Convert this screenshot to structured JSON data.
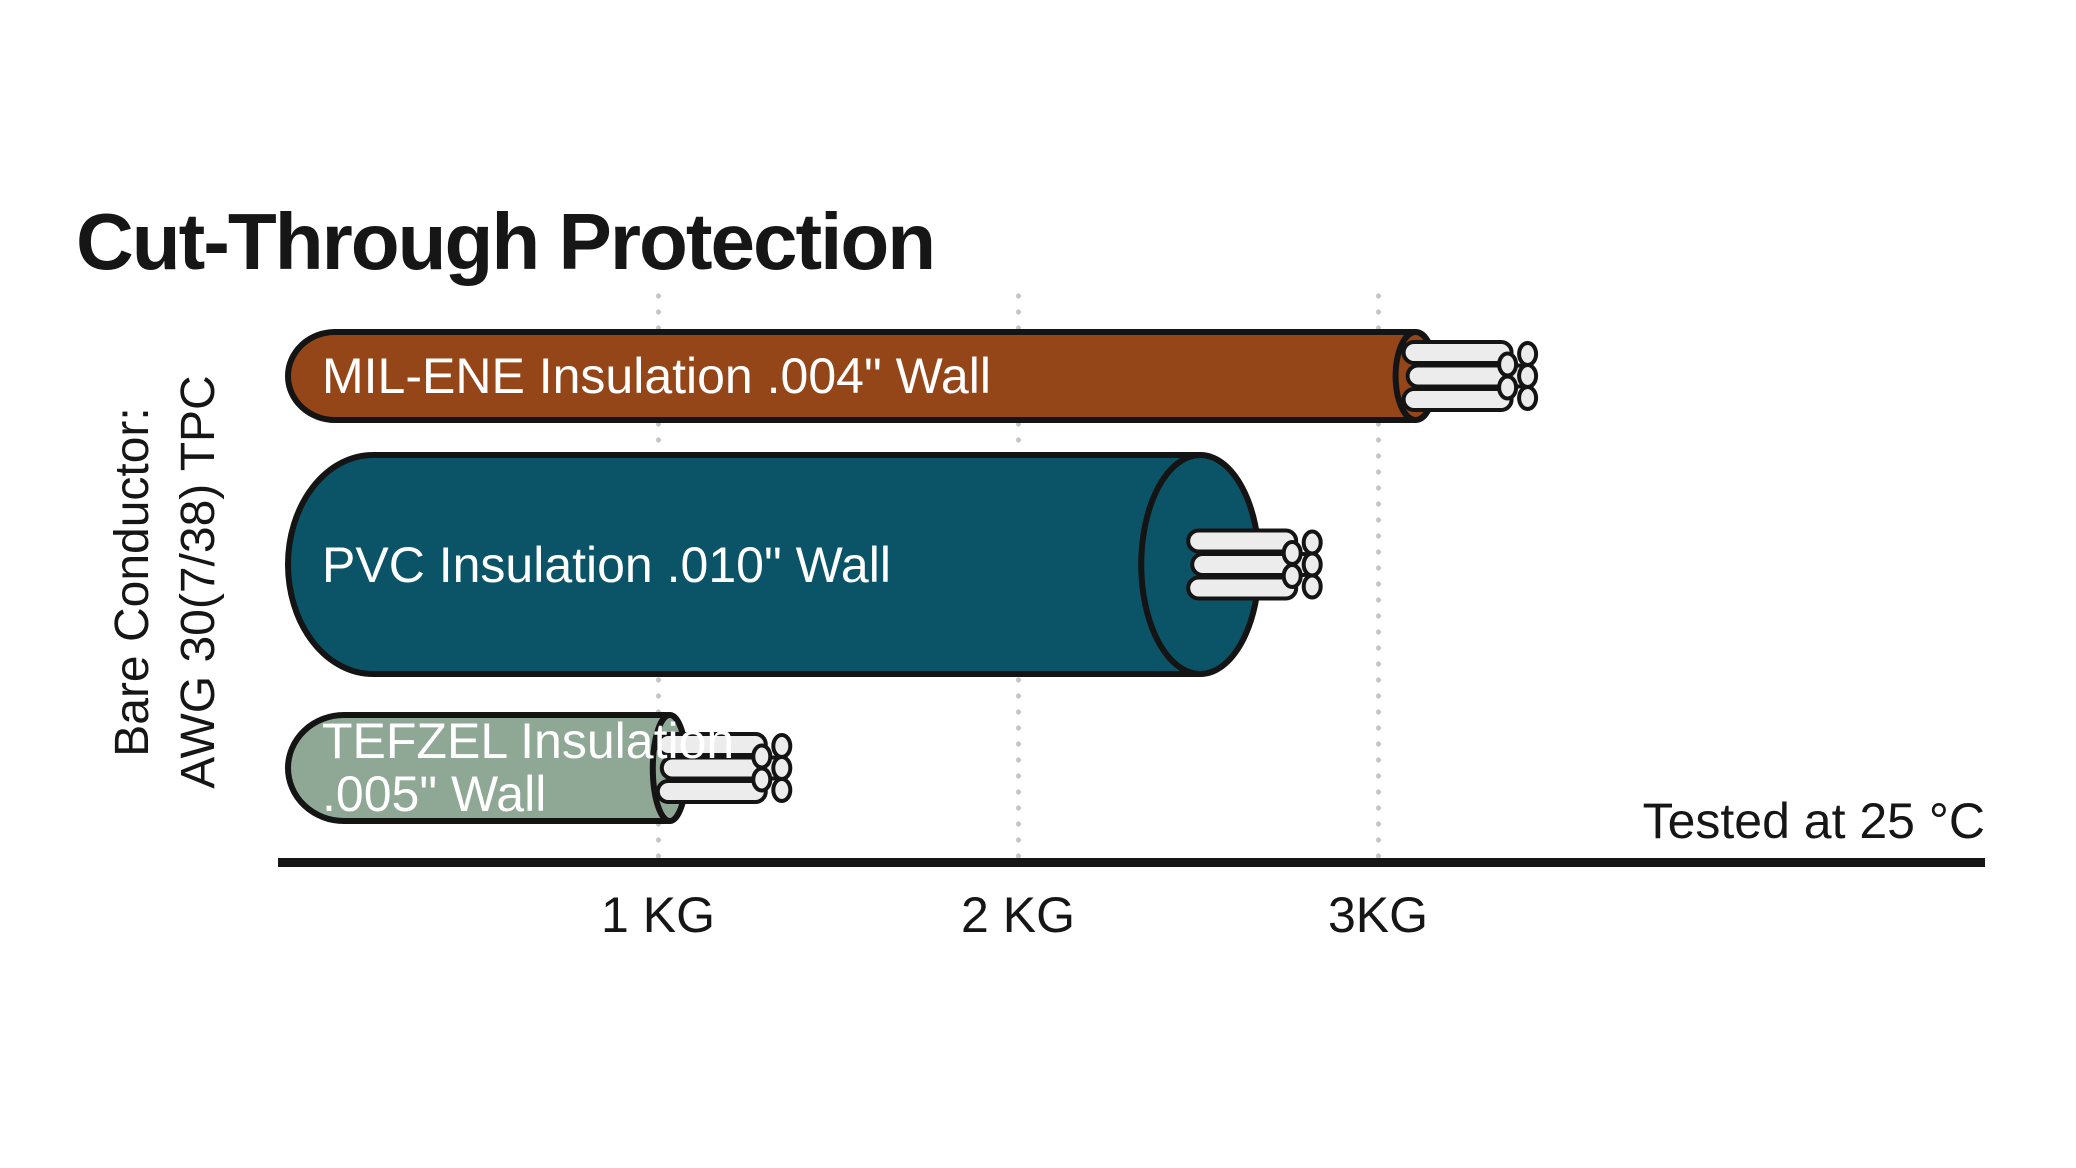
{
  "title": "Cut-Through Protection",
  "side_label": {
    "line1": "Bare Conductor:",
    "line2": "AWG 30(7/38) TPC"
  },
  "note": "Tested at 25 °C",
  "x_axis": {
    "ticks": [
      {
        "label": "1 KG",
        "kg": 1
      },
      {
        "label": "2 KG",
        "kg": 2
      },
      {
        "label": "3KG",
        "kg": 3
      }
    ]
  },
  "colors": {
    "background": "#ffffff",
    "ink": "#161616",
    "axis": "#161616",
    "gridline": "#c6c6c6",
    "bar_label_text": "#ffffff",
    "outline": "#141414",
    "strand_fill": "#ececec",
    "mil_ene_brown": "#954619",
    "pvc_teal": "#0b5468",
    "tefzel_green": "#8fa795"
  },
  "chart_data": {
    "type": "bar",
    "orientation": "horizontal",
    "title": "Cut-Through Protection",
    "unit": "KG",
    "xlim": [
      0,
      3.6
    ],
    "x_ticks_kg": [
      1,
      2,
      3
    ],
    "grid": "dotted-vertical",
    "note": "Tested at 25 °C",
    "conductor": "Bare Conductor: AWG 30(7/38) TPC",
    "categories": [
      "MIL-ENE Insulation .004\" Wall",
      "PVC Insulation .010\" Wall",
      "TEFZEL Insulation .005\" Wall"
    ],
    "values": [
      3.16,
      2.67,
      1.08
    ],
    "series": [
      {
        "name": "MIL-ENE Insulation .004\" Wall",
        "value_kg": 3.16,
        "color": "#954619",
        "label_lines": [
          "MIL-ENE Insulation .004\" Wall"
        ]
      },
      {
        "name": "PVC Insulation .010\" Wall",
        "value_kg": 2.67,
        "color": "#0b5468",
        "label_lines": [
          "PVC Insulation .010\" Wall"
        ]
      },
      {
        "name": "TEFZEL Insulation .005\" Wall",
        "value_kg": 1.08,
        "color": "#8fa795",
        "label_lines": [
          "TEFZEL Insulation",
          ".005\" Wall"
        ]
      }
    ]
  }
}
